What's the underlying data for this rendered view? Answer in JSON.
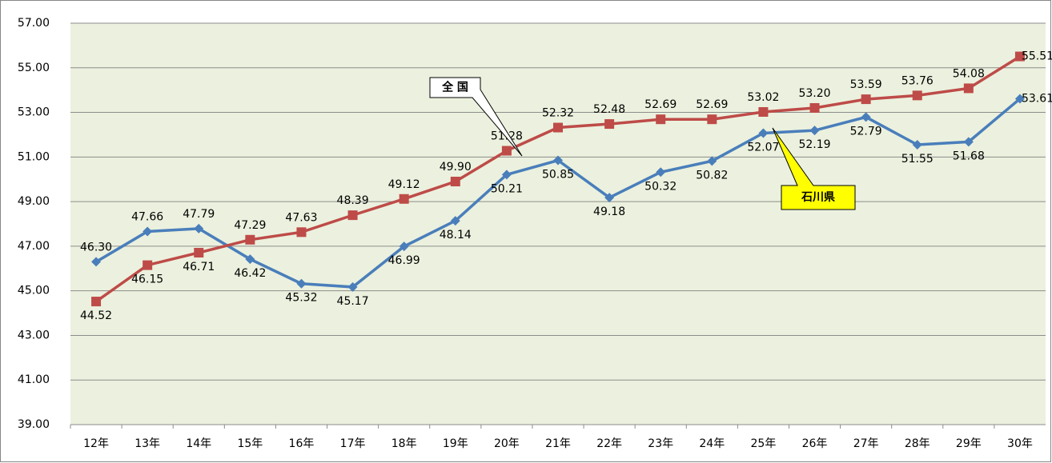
{
  "chart_data": {
    "type": "line",
    "categories": [
      "12年",
      "13年",
      "14年",
      "15年",
      "16年",
      "17年",
      "18年",
      "19年",
      "20年",
      "21年",
      "22年",
      "23年",
      "24年",
      "25年",
      "26年",
      "27年",
      "28年",
      "29年",
      "30年"
    ],
    "series": [
      {
        "name": "石川県",
        "color": "#4a7ebb",
        "marker": "diamond",
        "callout_color": "#ffff00",
        "values": [
          46.3,
          47.66,
          47.79,
          46.42,
          45.32,
          45.17,
          46.99,
          48.14,
          50.21,
          50.85,
          49.18,
          50.32,
          50.82,
          52.07,
          52.19,
          52.79,
          51.55,
          51.68,
          53.61
        ],
        "value_labels": [
          "46.30",
          "47.66",
          "47.79",
          "46.42",
          "45.32",
          "45.17",
          "46.99",
          "48.14",
          "50.21",
          "50.85",
          "49.18",
          "50.32",
          "50.82",
          "52.07",
          "52.19",
          "52.79",
          "51.55",
          "51.68",
          "53.61"
        ]
      },
      {
        "name": "全 国",
        "color": "#be4b48",
        "marker": "square",
        "callout_color": "#ffffff",
        "values": [
          44.52,
          46.15,
          46.71,
          47.29,
          47.63,
          48.39,
          49.12,
          49.9,
          51.28,
          52.32,
          52.48,
          52.69,
          52.69,
          53.02,
          53.2,
          53.59,
          53.76,
          54.08,
          55.51
        ],
        "value_labels": [
          "44.52",
          "46.15",
          "46.71",
          "47.29",
          "47.63",
          "48.39",
          "49.12",
          "49.90",
          "51.28",
          "52.32",
          "52.48",
          "52.69",
          "52.69",
          "53.02",
          "53.20",
          "53.59",
          "53.76",
          "54.08",
          "55.51"
        ]
      }
    ],
    "ylim": [
      39,
      57
    ],
    "yticks": [
      {
        "value": 39,
        "label": "39.00"
      },
      {
        "value": 41,
        "label": "41.00"
      },
      {
        "value": 43,
        "label": "43.00"
      },
      {
        "value": 45,
        "label": "45.00"
      },
      {
        "value": 47,
        "label": "47.00"
      },
      {
        "value": 49,
        "label": "49.00"
      },
      {
        "value": 51,
        "label": "51.00"
      },
      {
        "value": 53,
        "label": "53.00"
      },
      {
        "value": 55,
        "label": "55.00"
      },
      {
        "value": 57,
        "label": "57.00"
      }
    ],
    "grid": true,
    "plot_background": "#ebf1de"
  }
}
